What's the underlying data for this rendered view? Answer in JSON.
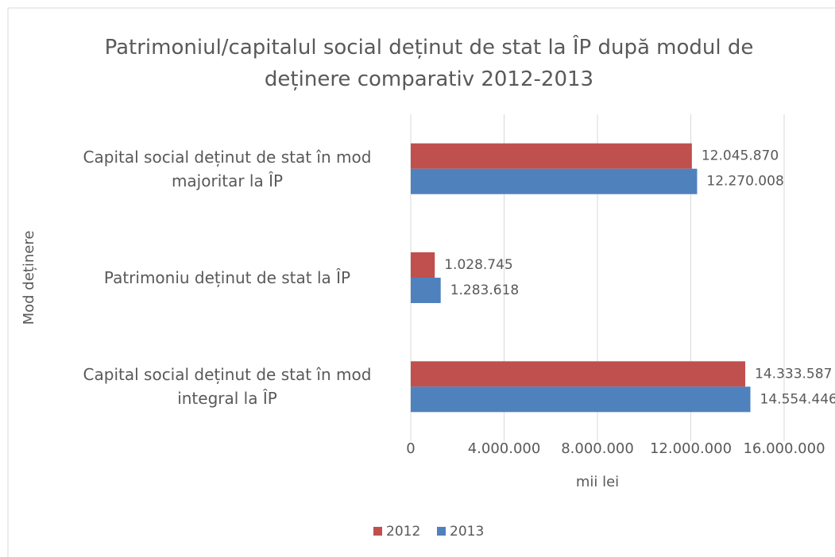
{
  "chart_data": {
    "type": "barh",
    "title": "Patrimoniul/capitalul social deținut de stat la ÎP după modul de deținere comparativ 2012-2013",
    "xlabel": "mii lei",
    "ylabel": "Mod deținere",
    "categories": [
      "Capital social deținut de stat în mod majoritar la ÎP",
      "Patrimoniu deținut de stat la ÎP",
      "Capital social deținut de stat în mod integral la ÎP"
    ],
    "series": [
      {
        "name": "2012",
        "color": "#c0504d",
        "values": [
          12045870,
          1028745,
          14333587
        ],
        "value_labels": [
          "12.045.870",
          "1.028.745",
          "14.333.587"
        ]
      },
      {
        "name": "2013",
        "color": "#4f81bd",
        "values": [
          12270008,
          1283618,
          14554446
        ],
        "value_labels": [
          "12.270.008",
          "1.283.618",
          "14.554.446"
        ]
      }
    ],
    "xlim": [
      0,
      16000000
    ],
    "xticks": [
      0,
      {
        "value": 4000000,
        "label": "4.000.000"
      },
      {
        "value": 8000000,
        "label": "8.000.000"
      },
      {
        "value": 12000000,
        "label": "12.000.000"
      },
      {
        "value": 16000000,
        "label": "16.000.000"
      }
    ],
    "grid": true,
    "legend": "bottom"
  }
}
